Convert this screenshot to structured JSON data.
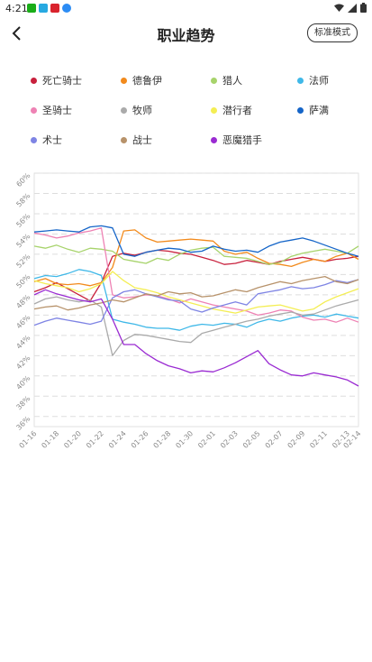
{
  "status": {
    "time": "4:21",
    "app_colors": [
      "#1aad19",
      "#27a9e1",
      "#d9232d",
      "#2c8cf4"
    ]
  },
  "header": {
    "title": "职业趋势",
    "mode_button": "标准模式"
  },
  "chart_data": {
    "type": "line",
    "x": [
      "01-16",
      "01-17",
      "01-18",
      "01-19",
      "01-20",
      "01-21",
      "01-22",
      "01-23",
      "01-24",
      "01-25",
      "01-26",
      "01-27",
      "01-28",
      "01-29",
      "01-30",
      "01-31",
      "02-01",
      "02-02",
      "02-03",
      "02-04",
      "02-05",
      "02-06",
      "02-07",
      "02-08",
      "02-09",
      "02-10",
      "02-11",
      "02-12",
      "02-13",
      "02-14"
    ],
    "x_tick_labels": [
      "01-16",
      "01-18",
      "01-20",
      "01-22",
      "01-24",
      "01-26",
      "01-28",
      "01-30",
      "02-01",
      "02-03",
      "02-05",
      "02-07",
      "02-09",
      "02-11",
      "02-13",
      "02-14"
    ],
    "y_ticks": [
      36,
      38,
      40,
      42,
      44,
      46,
      48,
      50,
      52,
      54,
      56,
      58,
      60
    ],
    "ylim": [
      35,
      60
    ],
    "grid": true,
    "legend": "top",
    "series": [
      {
        "name": "死亡骑士",
        "color": "#c8203c",
        "values": [
          48.3,
          48.7,
          49.2,
          48.6,
          48.0,
          47.4,
          49.2,
          51.8,
          52.1,
          51.9,
          52.2,
          52.4,
          52.3,
          52.1,
          52.0,
          51.7,
          51.4,
          51.0,
          51.1,
          51.4,
          51.2,
          51.0,
          51.3,
          51.5,
          51.7,
          51.5,
          51.3,
          51.5,
          51.6,
          51.8
        ]
      },
      {
        "name": "德鲁伊",
        "color": "#f28a1c",
        "values": [
          49.3,
          49.6,
          49.1,
          49.0,
          49.1,
          48.9,
          49.2,
          50.7,
          54.3,
          54.4,
          53.6,
          53.2,
          53.3,
          53.4,
          53.5,
          53.4,
          53.3,
          52.3,
          52.0,
          52.2,
          51.6,
          51.1,
          51.0,
          50.8,
          51.2,
          51.5,
          51.3,
          51.8,
          52.1,
          51.5
        ]
      },
      {
        "name": "猎人",
        "color": "#a7d36b",
        "values": [
          52.8,
          52.6,
          52.9,
          52.5,
          52.2,
          52.6,
          52.5,
          52.3,
          51.5,
          51.3,
          51.1,
          51.6,
          51.4,
          52.0,
          52.4,
          52.6,
          52.7,
          51.8,
          51.7,
          51.6,
          51.3,
          51.0,
          51.2,
          51.8,
          52.1,
          52.3,
          52.5,
          52.3,
          52.1,
          52.8
        ]
      },
      {
        "name": "法师",
        "color": "#3fb8e8",
        "values": [
          49.6,
          49.9,
          49.8,
          50.1,
          50.5,
          50.3,
          49.9,
          45.6,
          45.3,
          45.1,
          44.8,
          44.7,
          44.7,
          44.5,
          44.9,
          45.1,
          45.0,
          45.2,
          45.1,
          44.8,
          45.3,
          45.6,
          45.4,
          45.7,
          45.9,
          46.0,
          45.8,
          46.1,
          45.9,
          45.7
        ]
      },
      {
        "name": "圣骑士",
        "color": "#ee82b4",
        "values": [
          54.1,
          53.9,
          53.6,
          53.8,
          54.1,
          54.3,
          54.6,
          48.0,
          47.7,
          47.8,
          48.0,
          47.9,
          47.6,
          47.2,
          47.6,
          47.3,
          47.0,
          46.8,
          46.6,
          46.4,
          46.0,
          46.2,
          46.5,
          46.4,
          45.8,
          45.5,
          45.6,
          45.3,
          45.7,
          45.3
        ]
      },
      {
        "name": "牧师",
        "color": "#aaaaaa",
        "values": [
          47.1,
          47.6,
          47.8,
          47.5,
          47.3,
          47.5,
          46.8,
          42.0,
          43.5,
          44.1,
          44.0,
          43.8,
          43.6,
          43.4,
          43.3,
          44.2,
          44.5,
          44.8,
          45.1,
          45.4,
          45.6,
          45.9,
          46.1,
          46.3,
          46.0,
          46.1,
          46.5,
          46.9,
          47.2,
          47.5
        ]
      },
      {
        "name": "潜行者",
        "color": "#f4ee54",
        "values": [
          49.4,
          49.1,
          48.9,
          48.7,
          48.3,
          48.6,
          49.1,
          50.3,
          49.4,
          48.7,
          48.5,
          48.2,
          47.8,
          47.5,
          47.2,
          46.9,
          46.6,
          46.4,
          46.2,
          46.5,
          46.8,
          46.9,
          47.0,
          46.7,
          46.4,
          46.6,
          47.3,
          47.8,
          48.2,
          48.6
        ]
      },
      {
        "name": "萨满",
        "color": "#1565c8",
        "values": [
          54.2,
          54.3,
          54.4,
          54.3,
          54.2,
          54.7,
          54.8,
          54.6,
          52.0,
          51.8,
          52.2,
          52.4,
          52.6,
          52.5,
          52.2,
          52.3,
          52.8,
          52.5,
          52.3,
          52.4,
          52.2,
          52.8,
          53.2,
          53.4,
          53.6,
          53.3,
          52.9,
          52.5,
          52.1,
          51.8
        ]
      },
      {
        "name": "术士",
        "color": "#7e84e4",
        "values": [
          45.0,
          45.4,
          45.7,
          45.5,
          45.3,
          45.1,
          45.4,
          47.7,
          48.3,
          48.5,
          48.1,
          47.8,
          47.5,
          47.4,
          46.6,
          46.3,
          46.7,
          47.0,
          47.3,
          47.0,
          48.1,
          48.3,
          48.5,
          48.8,
          48.6,
          48.7,
          49.0,
          49.4,
          49.2,
          49.5
        ]
      },
      {
        "name": "战士",
        "color": "#b7926a",
        "values": [
          46.6,
          46.8,
          46.9,
          46.5,
          46.7,
          47.0,
          47.2,
          47.5,
          47.3,
          47.7,
          48.1,
          47.9,
          48.3,
          48.1,
          48.2,
          47.8,
          47.9,
          48.2,
          48.5,
          48.3,
          48.7,
          49.0,
          49.3,
          49.1,
          49.4,
          49.6,
          49.8,
          49.3,
          49.1,
          49.5
        ]
      },
      {
        "name": "恶魔猎手",
        "color": "#9a2bd2",
        "values": [
          48.0,
          48.5,
          48.1,
          47.8,
          47.5,
          47.3,
          47.6,
          45.6,
          43.1,
          43.1,
          42.2,
          41.5,
          41.0,
          40.7,
          40.3,
          40.5,
          40.4,
          40.8,
          41.3,
          41.9,
          42.5,
          41.2,
          40.6,
          40.1,
          40.0,
          40.3,
          40.1,
          39.9,
          39.6,
          39.0
        ]
      }
    ]
  }
}
